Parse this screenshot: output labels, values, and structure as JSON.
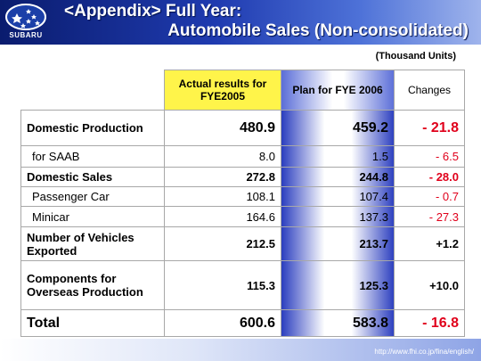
{
  "header": {
    "logo_text": "SUBARU",
    "title_line1": "<Appendix> Full Year:",
    "title_line2": "Automobile Sales (Non-consolidated)"
  },
  "units": "(Thousand Units)",
  "table": {
    "columns": [
      "Actual results for FYE2005",
      "Plan for FYE 2006",
      "Changes"
    ],
    "rows": [
      {
        "label": "Domestic Production",
        "actual": "480.9",
        "plan": "459.2",
        "change": "- 21.8"
      },
      {
        "label": "for SAAB",
        "actual": "8.0",
        "plan": "1.5",
        "change": "- 6.5"
      },
      {
        "label": "Domestic Sales",
        "actual": "272.8",
        "plan": "244.8",
        "change": "- 28.0"
      },
      {
        "label": "Passenger Car",
        "actual": "108.1",
        "plan": "107.4",
        "change": "- 0.7"
      },
      {
        "label": "Minicar",
        "actual": "164.6",
        "plan": "137.3",
        "change": "- 27.3"
      },
      {
        "label": "Number of Vehicles Exported",
        "actual": "212.5",
        "plan": "213.7",
        "change": "+1.2"
      },
      {
        "label": "Components for Overseas Production",
        "actual": "115.3",
        "plan": "125.3",
        "change": "+10.0"
      },
      {
        "label": "Total",
        "actual": "600.6",
        "plan": "583.8",
        "change": "- 16.8"
      }
    ]
  },
  "footer": {
    "url": "http://www.fhi.co.jp/fina/english/"
  },
  "colors": {
    "header_dark": "#0a1c6e",
    "header_light": "#9fb4ec",
    "actual_header": "#fff44a",
    "plan_gradient": "#2c3fbf",
    "negative": "#e0001b"
  }
}
